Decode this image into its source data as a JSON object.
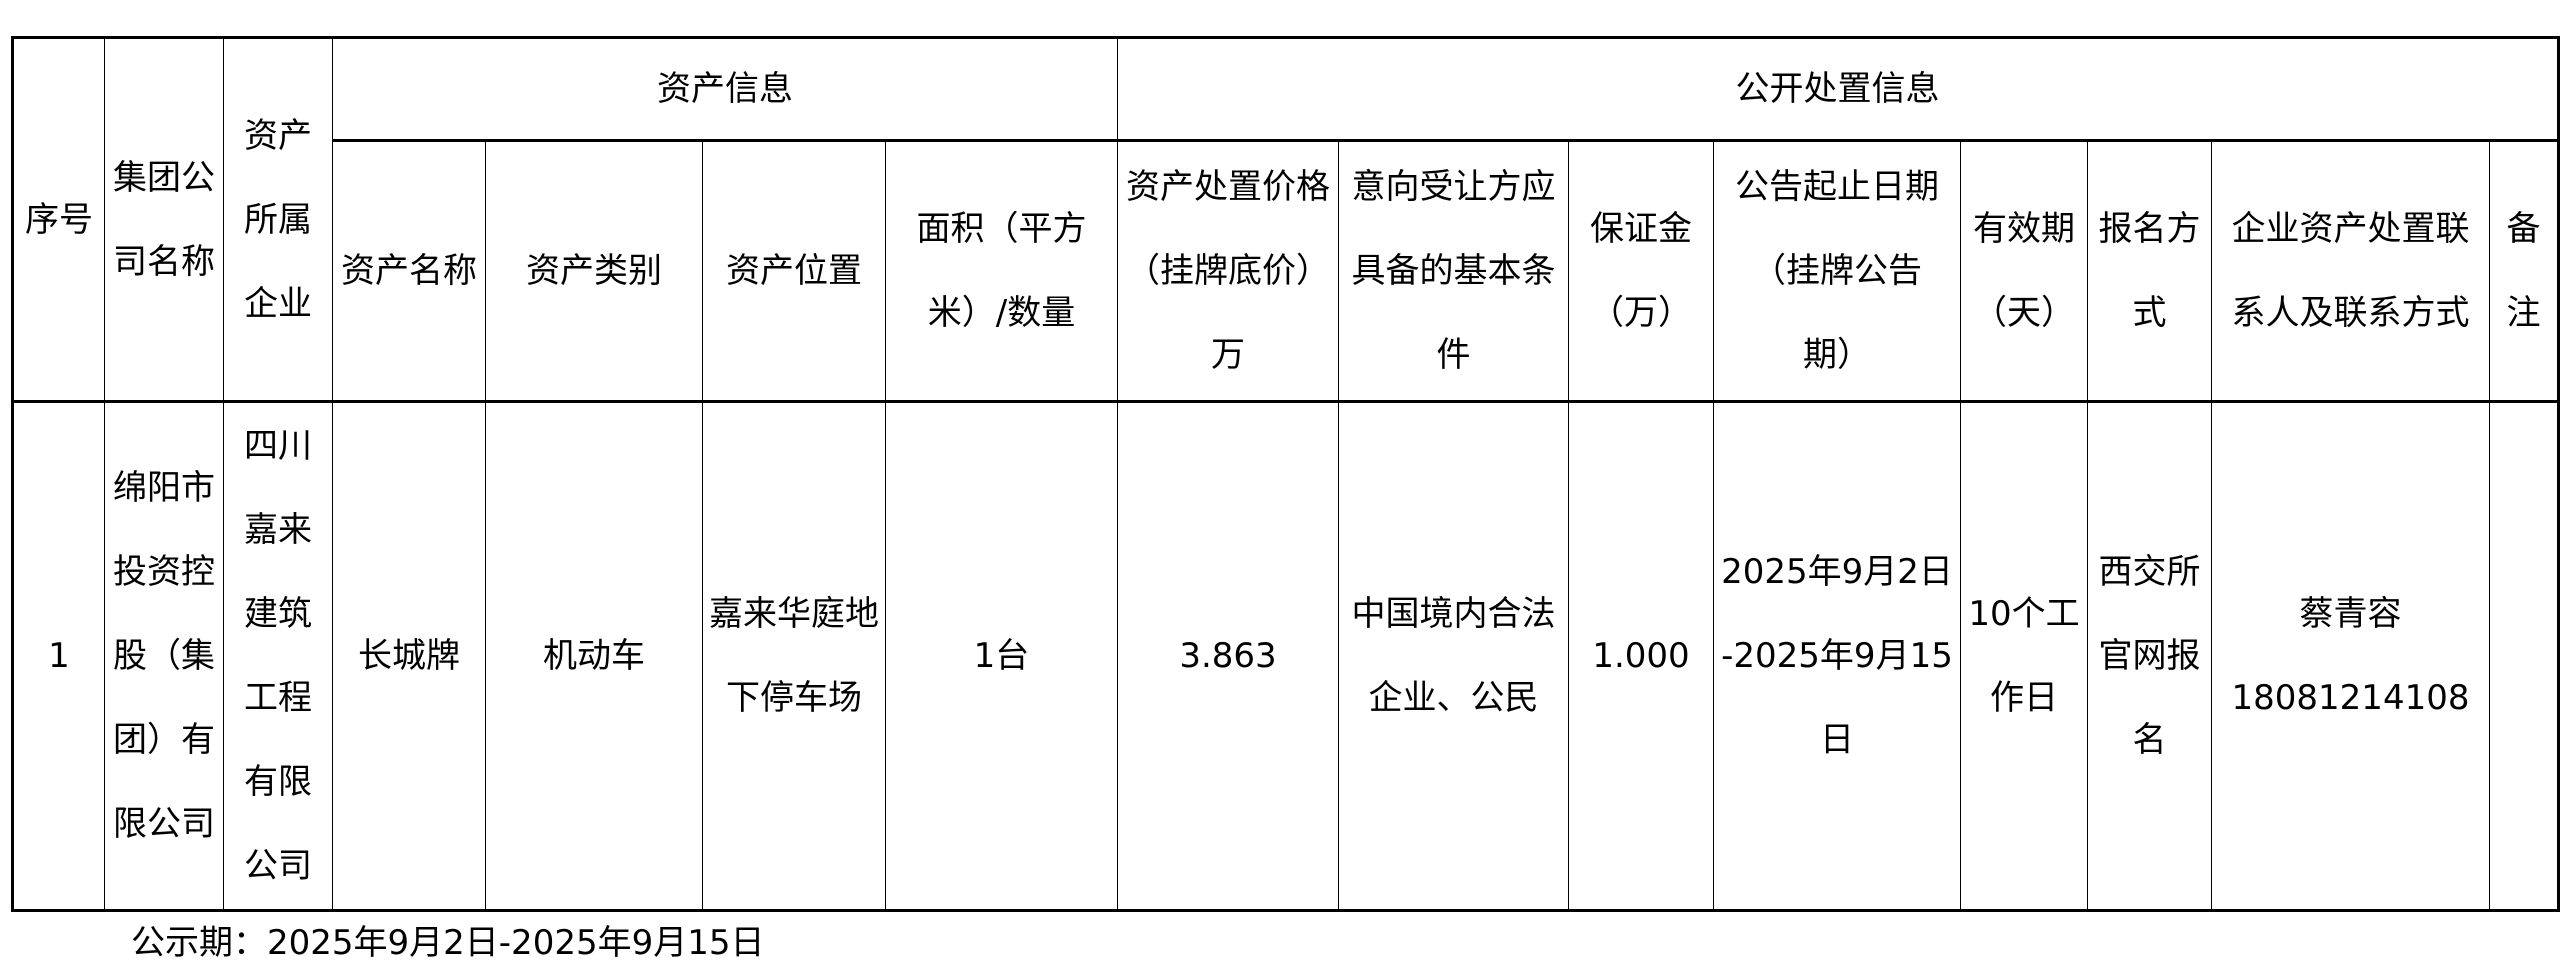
{
  "table": {
    "group_headers": {
      "asset_info": "资产信息",
      "public_disposal_info": "公开处置信息"
    },
    "headers": {
      "seq": "序号",
      "group_company": "集团公\n司名称",
      "owner_enterprise": "资产\n所属\n企业",
      "asset_name": "资产名称",
      "asset_category": "资产类别",
      "asset_location": "资产位置",
      "area_quantity": "面积（平方\n米）/数量",
      "price": "资产处置价格\n（挂牌底价）\n万",
      "conditions": "意向受让方应\n具备的基本条\n件",
      "deposit": "保证金\n（万）",
      "announce_period": "公告起止日期\n（挂牌公告\n期）",
      "valid_days": "有效期\n（天）",
      "registration": "报名方\n式",
      "contact": "企业资产处置联\n系人及联系方式",
      "remarks": "备\n注"
    },
    "rows": [
      {
        "seq": "1",
        "group_company": "绵阳市\n投资控\n股（集\n团）有\n限公司",
        "owner_enterprise": "四川\n嘉来\n建筑\n工程\n有限\n公司",
        "asset_name": "长城牌",
        "asset_category": "机动车",
        "asset_location": "嘉来华庭地\n下停车场",
        "area_quantity": "1台",
        "price": "3.863",
        "conditions": "中国境内合法\n企业、公民",
        "deposit": "1.000",
        "announce_period": "2025年9月2日\n-2025年9月15\n日",
        "valid_days": "10个工\n作日",
        "registration": "西交所\n官网报\n名",
        "contact": "蔡青容\n18081214108",
        "remarks": ""
      }
    ]
  },
  "footer": {
    "notice_period": "公示期：2025年9月2日-2025年9月15日"
  }
}
